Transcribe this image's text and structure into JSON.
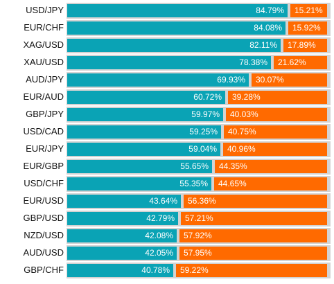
{
  "colors": {
    "long": "#0aa3b5",
    "short": "#ff6a00",
    "track": "#d3d3d3"
  },
  "chart_data": {
    "type": "bar",
    "stacked": true,
    "orientation": "horizontal",
    "categories": [
      "USD/JPY",
      "EUR/CHF",
      "XAG/USD",
      "XAU/USD",
      "AUD/JPY",
      "EUR/AUD",
      "GBP/JPY",
      "USD/CAD",
      "EUR/JPY",
      "EUR/GBP",
      "USD/CHF",
      "EUR/USD",
      "GBP/USD",
      "NZD/USD",
      "AUD/USD",
      "GBP/CHF"
    ],
    "series": [
      {
        "values": [
          84.79,
          84.08,
          82.11,
          78.38,
          69.93,
          60.72,
          59.97,
          59.25,
          59.04,
          55.65,
          55.35,
          43.64,
          42.79,
          42.08,
          42.05,
          40.78
        ],
        "labels": [
          "84.79%",
          "84.08%",
          "82.11%",
          "78.38%",
          "69.93%",
          "60.72%",
          "59.97%",
          "59.25%",
          "59.04%",
          "55.65%",
          "55.35%",
          "43.64%",
          "42.79%",
          "42.08%",
          "42.05%",
          "40.78%"
        ]
      },
      {
        "values": [
          15.21,
          15.92,
          17.89,
          21.62,
          30.07,
          39.28,
          40.03,
          40.75,
          40.96,
          44.35,
          44.65,
          56.36,
          57.21,
          57.92,
          57.95,
          59.22
        ],
        "labels": [
          "15.21%",
          "15.92%",
          "17.89%",
          "21.62%",
          "30.07%",
          "39.28%",
          "40.03%",
          "40.75%",
          "40.96%",
          "44.35%",
          "44.65%",
          "56.36%",
          "57.21%",
          "57.92%",
          "57.95%",
          "59.22%"
        ]
      }
    ],
    "xlim": [
      0,
      100
    ],
    "grid": false,
    "legend": "none"
  }
}
